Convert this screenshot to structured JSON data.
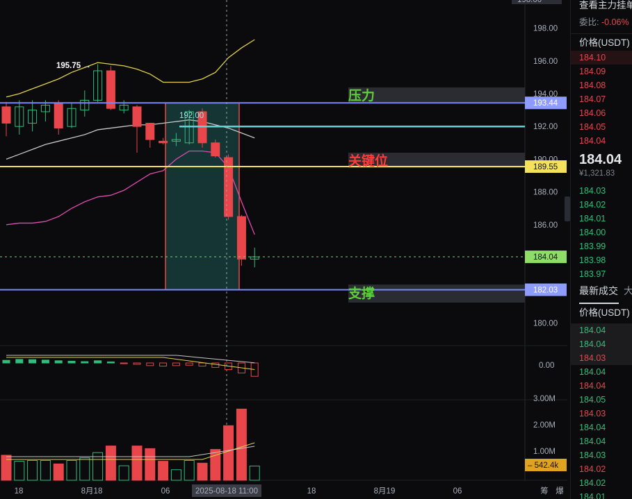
{
  "chart": {
    "y_axis_labels": [
      "198.00",
      "196.00",
      "194.00",
      "192.00",
      "190.00",
      "188.00",
      "186.00",
      "184.00",
      "182.00",
      "180.00"
    ],
    "price_tags": {
      "resistance": "193.44",
      "key_level": "189.55",
      "current": "184.04",
      "support": "182.03"
    },
    "top_cut_label": "198.00",
    "zone_labels": {
      "resistance": "压力",
      "key_level": "关键位",
      "support": "支撑"
    },
    "annotations": {
      "high": "195.75",
      "drawn": "192.00"
    },
    "macd_axis": [
      "0.00"
    ],
    "volume_axis": [
      "3.00M",
      "2.00M",
      "1.00M"
    ],
    "volume_tag": "542.4k",
    "x_axis_labels": [
      "18",
      "8月18",
      "06",
      "18",
      "8月19",
      "06"
    ],
    "crosshair_time": "2025-08-18 11:00",
    "bottom_buttons": [
      "筹",
      "爆"
    ],
    "colors": {
      "up": "#2fbf7d",
      "down": "#e8464b",
      "resistance_line": "#7b86ff",
      "key_line": "#f2e05a",
      "drawn_line": "#5fd6d6",
      "zone_fill": "#1f5a56",
      "zone_border": "#e8464b",
      "bb_upper": "#e2d24a",
      "ma_mid": "#c8c8c8",
      "bb_lower": "#e04ab0"
    }
  },
  "orderbook": {
    "header_title": "查看主力挂单",
    "ratio_label": "委比:",
    "ratio_value": "-0.06%",
    "price_col_header": "价格(USDT)",
    "asks": [
      "184.10",
      "184.09",
      "184.08",
      "184.07",
      "184.06",
      "184.05",
      "184.04"
    ],
    "mid_price": "184.04",
    "mid_cny": "¥1,321.83",
    "bids": [
      "184.03",
      "184.02",
      "184.01",
      "184.00",
      "183.99",
      "183.98",
      "183.97"
    ],
    "trades_title": "最新成交",
    "trades_title_2": "大",
    "trades_price_header": "价格(USDT)",
    "trades": [
      {
        "price": "184.04",
        "side": "green"
      },
      {
        "price": "184.04",
        "side": "green"
      },
      {
        "price": "184.03",
        "side": "red"
      },
      {
        "price": "184.04",
        "side": "green"
      },
      {
        "price": "184.04",
        "side": "red"
      },
      {
        "price": "184.05",
        "side": "green"
      },
      {
        "price": "184.03",
        "side": "red"
      },
      {
        "price": "184.04",
        "side": "green"
      },
      {
        "price": "184.04",
        "side": "green"
      },
      {
        "price": "184.03",
        "side": "green"
      },
      {
        "price": "184.02",
        "side": "red"
      },
      {
        "price": "184.02",
        "side": "green"
      },
      {
        "price": "184.01",
        "side": "green"
      }
    ]
  },
  "candles": [
    {
      "o": 193.2,
      "h": 193.5,
      "l": 191.4,
      "c": 192.2
    },
    {
      "o": 192.0,
      "h": 193.6,
      "l": 191.5,
      "c": 193.2
    },
    {
      "o": 192.2,
      "h": 193.6,
      "l": 191.7,
      "c": 193.0
    },
    {
      "o": 192.9,
      "h": 193.6,
      "l": 192.3,
      "c": 193.3
    },
    {
      "o": 193.4,
      "h": 193.6,
      "l": 191.5,
      "c": 191.9
    },
    {
      "o": 192.0,
      "h": 193.4,
      "l": 191.9,
      "c": 193.1
    },
    {
      "o": 193.0,
      "h": 194.2,
      "l": 192.6,
      "c": 193.6
    },
    {
      "o": 193.6,
      "h": 195.8,
      "l": 193.5,
      "c": 195.4
    },
    {
      "o": 195.4,
      "h": 195.7,
      "l": 193.0,
      "c": 193.1
    },
    {
      "o": 193.0,
      "h": 193.6,
      "l": 192.8,
      "c": 193.3
    },
    {
      "o": 193.2,
      "h": 193.3,
      "l": 190.4,
      "c": 192.0
    },
    {
      "o": 192.2,
      "h": 192.2,
      "l": 190.7,
      "c": 191.2
    },
    {
      "o": 191.1,
      "h": 191.3,
      "l": 190.9,
      "c": 191.0
    },
    {
      "o": 191.1,
      "h": 191.6,
      "l": 190.8,
      "c": 191.2
    },
    {
      "o": 191.0,
      "h": 193.0,
      "l": 190.9,
      "c": 192.9
    },
    {
      "o": 192.9,
      "h": 193.1,
      "l": 190.7,
      "c": 191.0
    },
    {
      "o": 191.0,
      "h": 191.2,
      "l": 190.1,
      "c": 190.2
    },
    {
      "o": 190.1,
      "h": 190.3,
      "l": 186.3,
      "c": 186.5
    },
    {
      "o": 186.5,
      "h": 186.6,
      "l": 183.5,
      "c": 183.9
    },
    {
      "o": 183.9,
      "h": 184.6,
      "l": 183.4,
      "c": 184.04
    }
  ],
  "volumes": [
    {
      "v": 0.95,
      "up": false
    },
    {
      "v": 0.72,
      "up": true
    },
    {
      "v": 0.75,
      "up": true
    },
    {
      "v": 0.75,
      "up": true
    },
    {
      "v": 0.62,
      "up": false
    },
    {
      "v": 0.75,
      "up": true
    },
    {
      "v": 0.85,
      "up": true
    },
    {
      "v": 1.05,
      "up": true
    },
    {
      "v": 1.3,
      "up": false
    },
    {
      "v": 0.55,
      "up": true
    },
    {
      "v": 1.3,
      "up": false
    },
    {
      "v": 1.2,
      "up": false
    },
    {
      "v": 0.72,
      "up": false
    },
    {
      "v": 0.4,
      "up": true
    },
    {
      "v": 0.75,
      "up": true
    },
    {
      "v": 0.65,
      "up": false
    },
    {
      "v": 1.17,
      "up": false
    },
    {
      "v": 2.07,
      "up": false
    },
    {
      "v": 2.7,
      "up": false
    },
    {
      "v": 0.54,
      "up": true
    }
  ],
  "macd": [
    {
      "v": 0.12,
      "up": true
    },
    {
      "v": 0.16,
      "up": true
    },
    {
      "v": 0.15,
      "up": true
    },
    {
      "v": 0.13,
      "up": true
    },
    {
      "v": 0.1,
      "up": true
    },
    {
      "v": 0.08,
      "up": true
    },
    {
      "v": 0.06,
      "up": true
    },
    {
      "v": 0.1,
      "up": true
    },
    {
      "v": 0.05,
      "up": true
    },
    {
      "v": -0.02,
      "up": false
    },
    {
      "v": -0.06,
      "up": false
    },
    {
      "v": -0.12,
      "up": false
    },
    {
      "v": -0.14,
      "up": false
    },
    {
      "v": -0.12,
      "up": false
    },
    {
      "v": -0.1,
      "up": false
    },
    {
      "v": -0.14,
      "up": false
    },
    {
      "v": -0.2,
      "up": false
    },
    {
      "v": -0.3,
      "up": false
    },
    {
      "v": -0.45,
      "up": false
    },
    {
      "v": -0.6,
      "up": false
    }
  ],
  "bb_upper": [
    193.8,
    194.0,
    194.3,
    194.6,
    194.9,
    195.3,
    195.6,
    195.9,
    195.8,
    195.7,
    195.5,
    195.2,
    194.7,
    194.7,
    194.7,
    194.9,
    195.3,
    196.2,
    196.8,
    197.3
  ],
  "ma_mid": [
    190.0,
    190.3,
    190.6,
    190.9,
    191.1,
    191.3,
    191.5,
    191.8,
    191.9,
    192.0,
    192.1,
    192.1,
    192.2,
    192.3,
    192.4,
    192.3,
    192.1,
    191.9,
    191.6,
    191.3
  ],
  "bb_lower": [
    186.0,
    186.1,
    186.1,
    186.2,
    186.5,
    187.0,
    187.4,
    187.7,
    187.8,
    188.1,
    188.6,
    189.1,
    189.3,
    190.0,
    190.5,
    190.5,
    190.4,
    189.5,
    187.4,
    185.4
  ]
}
